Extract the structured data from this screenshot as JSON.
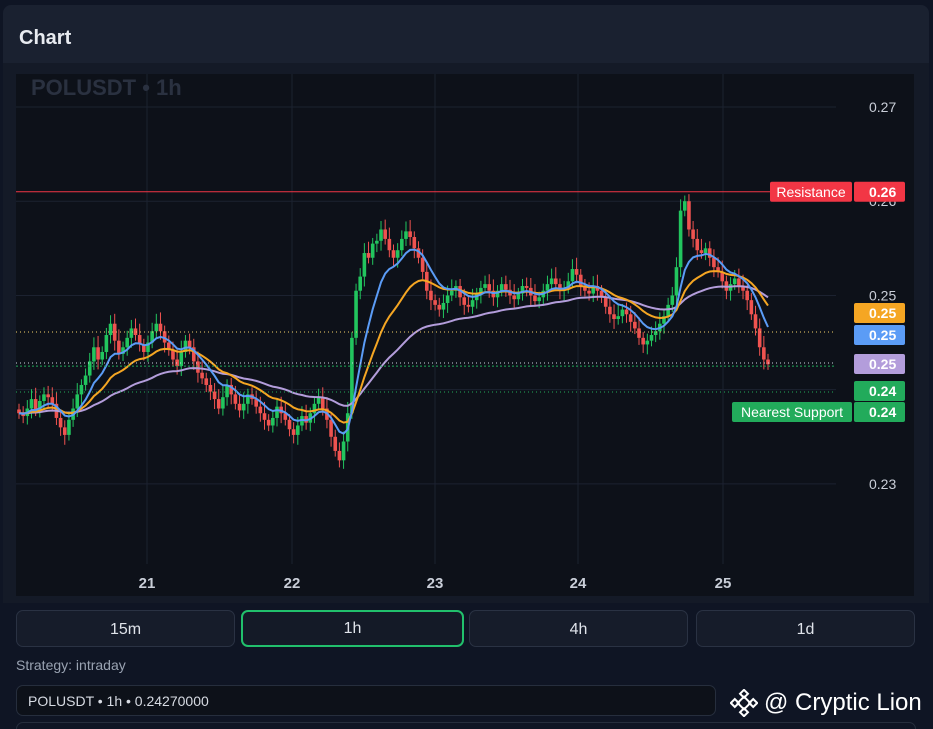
{
  "panel": {
    "title": "Chart"
  },
  "chart": {
    "symbol_label": "POLUSDT • 1h",
    "price_ticks": [
      "0.27",
      "0.26",
      "0.25",
      "0.24",
      "0.23"
    ],
    "time_ticks": [
      "21",
      "22",
      "23",
      "24",
      "25"
    ],
    "resistance": {
      "label": "Resistance",
      "value": "0.26",
      "color": "#f23645"
    },
    "support": {
      "label": "Nearest Support",
      "value": "0.24",
      "color": "#22ab5b"
    },
    "markers": [
      {
        "value": "0.25",
        "color": "#f5a623"
      },
      {
        "value": "0.25",
        "color": "#5b9cf6"
      },
      {
        "value": "0.25",
        "color": "#b39ddb"
      },
      {
        "value": "0.24",
        "color": "#22ab5b"
      }
    ],
    "colors": {
      "up": "#26a69a",
      "bull": "#22c55e",
      "bear": "#ef5350",
      "ema_fast": "#5b9cf6",
      "ema_mid": "#f5a623",
      "ema_slow": "#b39ddb"
    }
  },
  "timeframes": [
    {
      "label": "15m",
      "active": false
    },
    {
      "label": "1h",
      "active": true
    },
    {
      "label": "4h",
      "active": false
    },
    {
      "label": "1d",
      "active": false
    }
  ],
  "strategy": {
    "text": "Strategy: intraday"
  },
  "info": {
    "text": "POLUSDT • 1h • 0.24270000"
  },
  "watermark": {
    "text": "@ Cryptic Lion"
  },
  "chart_data": {
    "type": "candlestick",
    "title": "POLUSDT • 1h",
    "x_ticks": [
      "21",
      "22",
      "23",
      "24",
      "25"
    ],
    "y_ticks": [
      0.23,
      0.24,
      0.25,
      0.26,
      0.27
    ],
    "ylim": [
      0.2215,
      0.2735
    ],
    "resistance": 0.261,
    "support": 0.2425,
    "series": [
      {
        "name": "close",
        "values": [
          0.2375,
          0.2372,
          0.238,
          0.239,
          0.2378,
          0.2388,
          0.2395,
          0.2392,
          0.2385,
          0.237,
          0.236,
          0.2352,
          0.2368,
          0.238,
          0.2395,
          0.2405,
          0.2415,
          0.243,
          0.2445,
          0.2432,
          0.244,
          0.2458,
          0.247,
          0.2452,
          0.2438,
          0.2445,
          0.2455,
          0.2465,
          0.2458,
          0.2448,
          0.244,
          0.245,
          0.2462,
          0.247,
          0.2462,
          0.245,
          0.2442,
          0.2432,
          0.2425,
          0.244,
          0.2452,
          0.2445,
          0.243,
          0.2418,
          0.2412,
          0.2405,
          0.2398,
          0.239,
          0.238,
          0.2392,
          0.2405,
          0.2395,
          0.2385,
          0.2378,
          0.2385,
          0.2395,
          0.239,
          0.2382,
          0.2375,
          0.2368,
          0.2362,
          0.237,
          0.2382,
          0.2375,
          0.2368,
          0.2358,
          0.2352,
          0.2362,
          0.2372,
          0.2365,
          0.2375,
          0.2385,
          0.2392,
          0.238,
          0.2368,
          0.235,
          0.2335,
          0.2325,
          0.2345,
          0.2375,
          0.2455,
          0.2505,
          0.252,
          0.2545,
          0.254,
          0.2555,
          0.2558,
          0.257,
          0.256,
          0.2548,
          0.254,
          0.2548,
          0.256,
          0.2568,
          0.2562,
          0.255,
          0.254,
          0.2525,
          0.2505,
          0.2495,
          0.249,
          0.2485,
          0.2492,
          0.25,
          0.2505,
          0.251,
          0.2498,
          0.249,
          0.2488,
          0.2495,
          0.2502,
          0.2508,
          0.2512,
          0.2505,
          0.2498,
          0.2505,
          0.2512,
          0.2506,
          0.25,
          0.2496,
          0.2502,
          0.251,
          0.2508,
          0.25,
          0.2494,
          0.2498,
          0.2505,
          0.2512,
          0.2518,
          0.2512,
          0.2505,
          0.2508,
          0.2515,
          0.2528,
          0.2522,
          0.251,
          0.2505,
          0.2502,
          0.251,
          0.2505,
          0.2498,
          0.2488,
          0.248,
          0.2475,
          0.2478,
          0.2485,
          0.248,
          0.2472,
          0.2465,
          0.2455,
          0.2448,
          0.2452,
          0.2458,
          0.2462,
          0.247,
          0.2478,
          0.249,
          0.25,
          0.253,
          0.259,
          0.26,
          0.257,
          0.256,
          0.2548,
          0.2545,
          0.255,
          0.254,
          0.253,
          0.2525,
          0.2515,
          0.2505,
          0.2512,
          0.2518,
          0.251,
          0.2505,
          0.2495,
          0.248,
          0.2465,
          0.2445,
          0.2432,
          0.2427
        ]
      }
    ],
    "indicators": [
      {
        "name": "EMA fast",
        "color": "#5b9cf6"
      },
      {
        "name": "EMA mid",
        "color": "#f5a623"
      },
      {
        "name": "EMA slow",
        "color": "#b39ddb"
      }
    ]
  }
}
